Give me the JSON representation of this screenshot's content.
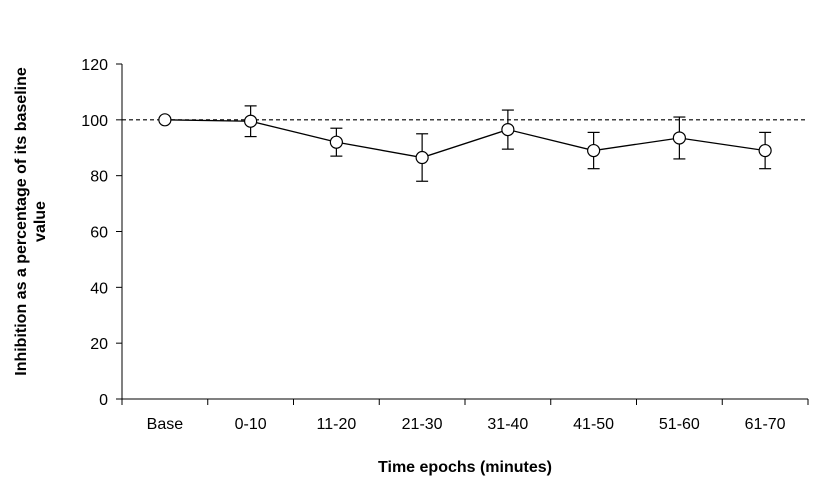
{
  "chart_data": {
    "type": "line",
    "xlabel": "Time epochs (minutes)",
    "ylabel_line1": "Inhibition as a percentage of its baseline",
    "ylabel_line2": "value",
    "categories": [
      "Base",
      "0-10",
      "11-20",
      "21-30",
      "31-40",
      "41-50",
      "51-60",
      "61-70"
    ],
    "values": [
      100,
      99.5,
      92,
      86.5,
      96.5,
      89,
      93.5,
      89
    ],
    "error": [
      0,
      5.5,
      5,
      8.5,
      7,
      6.5,
      7.5,
      6.5
    ],
    "ylim": [
      0,
      120
    ],
    "yticks": [
      0,
      20,
      40,
      60,
      80,
      100,
      120
    ],
    "reference_line": 100,
    "marker": "open-circle",
    "line_color": "#000000",
    "marker_fill": "#ffffff"
  }
}
